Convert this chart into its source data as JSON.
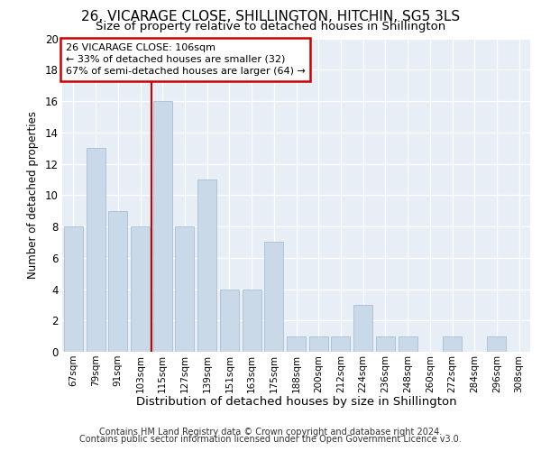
{
  "title": "26, VICARAGE CLOSE, SHILLINGTON, HITCHIN, SG5 3LS",
  "subtitle": "Size of property relative to detached houses in Shillington",
  "xlabel": "Distribution of detached houses by size in Shillington",
  "ylabel": "Number of detached properties",
  "categories": [
    "67sqm",
    "79sqm",
    "91sqm",
    "103sqm",
    "115sqm",
    "127sqm",
    "139sqm",
    "151sqm",
    "163sqm",
    "175sqm",
    "188sqm",
    "200sqm",
    "212sqm",
    "224sqm",
    "236sqm",
    "248sqm",
    "260sqm",
    "272sqm",
    "284sqm",
    "296sqm",
    "308sqm"
  ],
  "values": [
    8,
    13,
    9,
    8,
    16,
    8,
    11,
    4,
    4,
    7,
    1,
    1,
    1,
    3,
    1,
    1,
    0,
    1,
    0,
    1,
    0
  ],
  "bar_color": "#c9d9e8",
  "bar_edge_color": "#a8bfd4",
  "red_line_x": 3.5,
  "annotation_line1": "26 VICARAGE CLOSE: 106sqm",
  "annotation_line2": "← 33% of detached houses are smaller (32)",
  "annotation_line3": "67% of semi-detached houses are larger (64) →",
  "annotation_box_color": "#cc0000",
  "background_color": "#e8eef6",
  "ylim": [
    0,
    20
  ],
  "yticks": [
    0,
    2,
    4,
    6,
    8,
    10,
    12,
    14,
    16,
    18,
    20
  ],
  "footer_line1": "Contains HM Land Registry data © Crown copyright and database right 2024.",
  "footer_line2": "Contains public sector information licensed under the Open Government Licence v3.0.",
  "title_fontsize": 11,
  "subtitle_fontsize": 9.5
}
